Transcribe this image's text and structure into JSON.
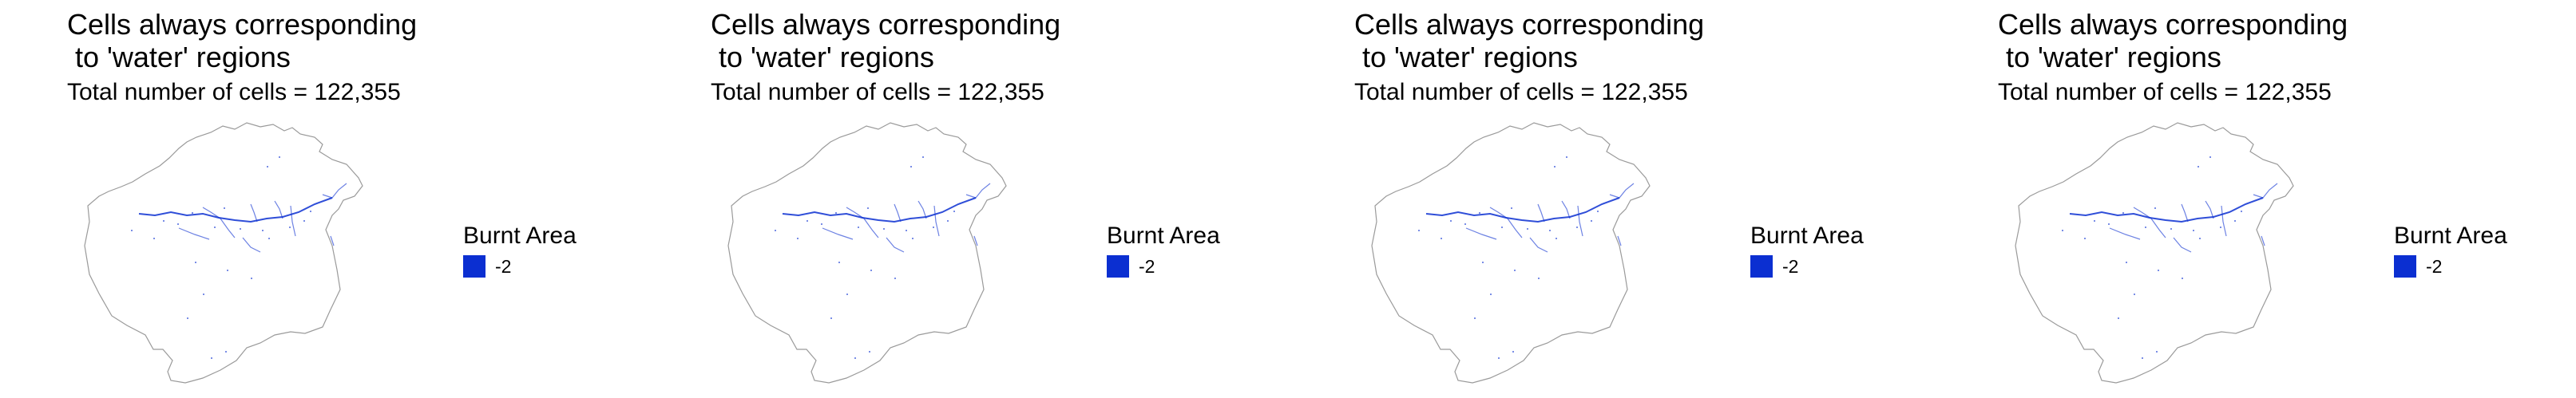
{
  "panels": [
    {
      "title": "Cells always corresponding\n to 'water' regions",
      "subtitle": "Total number of cells = 122,355",
      "legend": {
        "title": "Burnt Area",
        "items": [
          {
            "label": "-2",
            "color": "#0b2fd1"
          }
        ]
      }
    },
    {
      "title": "Cells always corresponding\n to 'water' regions",
      "subtitle": "Total number of cells = 122,355",
      "legend": {
        "title": "Burnt Area",
        "items": [
          {
            "label": "-2",
            "color": "#0b2fd1"
          }
        ]
      }
    },
    {
      "title": "Cells always corresponding\n to 'water' regions",
      "subtitle": "Total number of cells = 122,355",
      "legend": {
        "title": "Burnt Area",
        "items": [
          {
            "label": "-2",
            "color": "#0b2fd1"
          }
        ]
      }
    },
    {
      "title": "Cells always corresponding\n to 'water' regions",
      "subtitle": "Total number of cells = 122,355",
      "legend": {
        "title": "Burnt Area",
        "items": [
          {
            "label": "-2",
            "color": "#0b2fd1"
          }
        ]
      }
    }
  ],
  "colors": {
    "water": "#0b2fd1",
    "outline": "#9a9a9a"
  }
}
